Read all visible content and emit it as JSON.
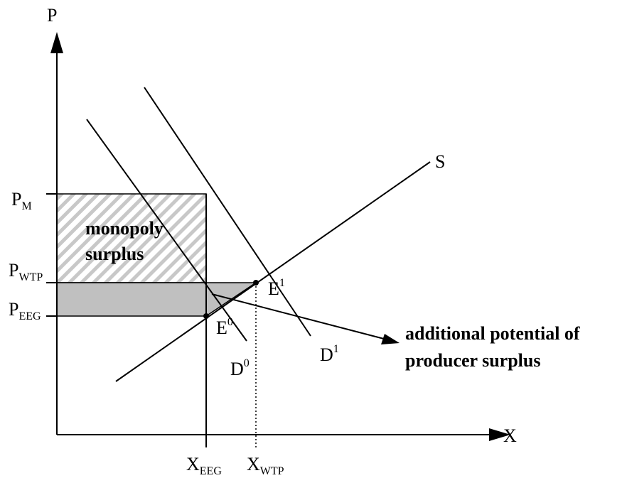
{
  "axes": {
    "y": "P",
    "x": "X"
  },
  "price_labels": [
    {
      "base": "P",
      "sub": "M"
    },
    {
      "base": "P",
      "sub": "WTP"
    },
    {
      "base": "P",
      "sub": "EEG"
    }
  ],
  "quantity_labels": [
    {
      "base": "X",
      "sub": "EEG"
    },
    {
      "base": "X",
      "sub": "WTP"
    }
  ],
  "curves": {
    "supply": "S",
    "demand0": {
      "base": "D",
      "sup": "0"
    },
    "demand1": {
      "base": "D",
      "sup": "1"
    }
  },
  "points": [
    {
      "base": "E",
      "sup": "0"
    },
    {
      "base": "E",
      "sup": "1"
    }
  ],
  "annotations": {
    "monopoly": [
      "monopoly",
      "surplus"
    ],
    "additional": [
      "additional potential of",
      "producer surplus"
    ]
  }
}
